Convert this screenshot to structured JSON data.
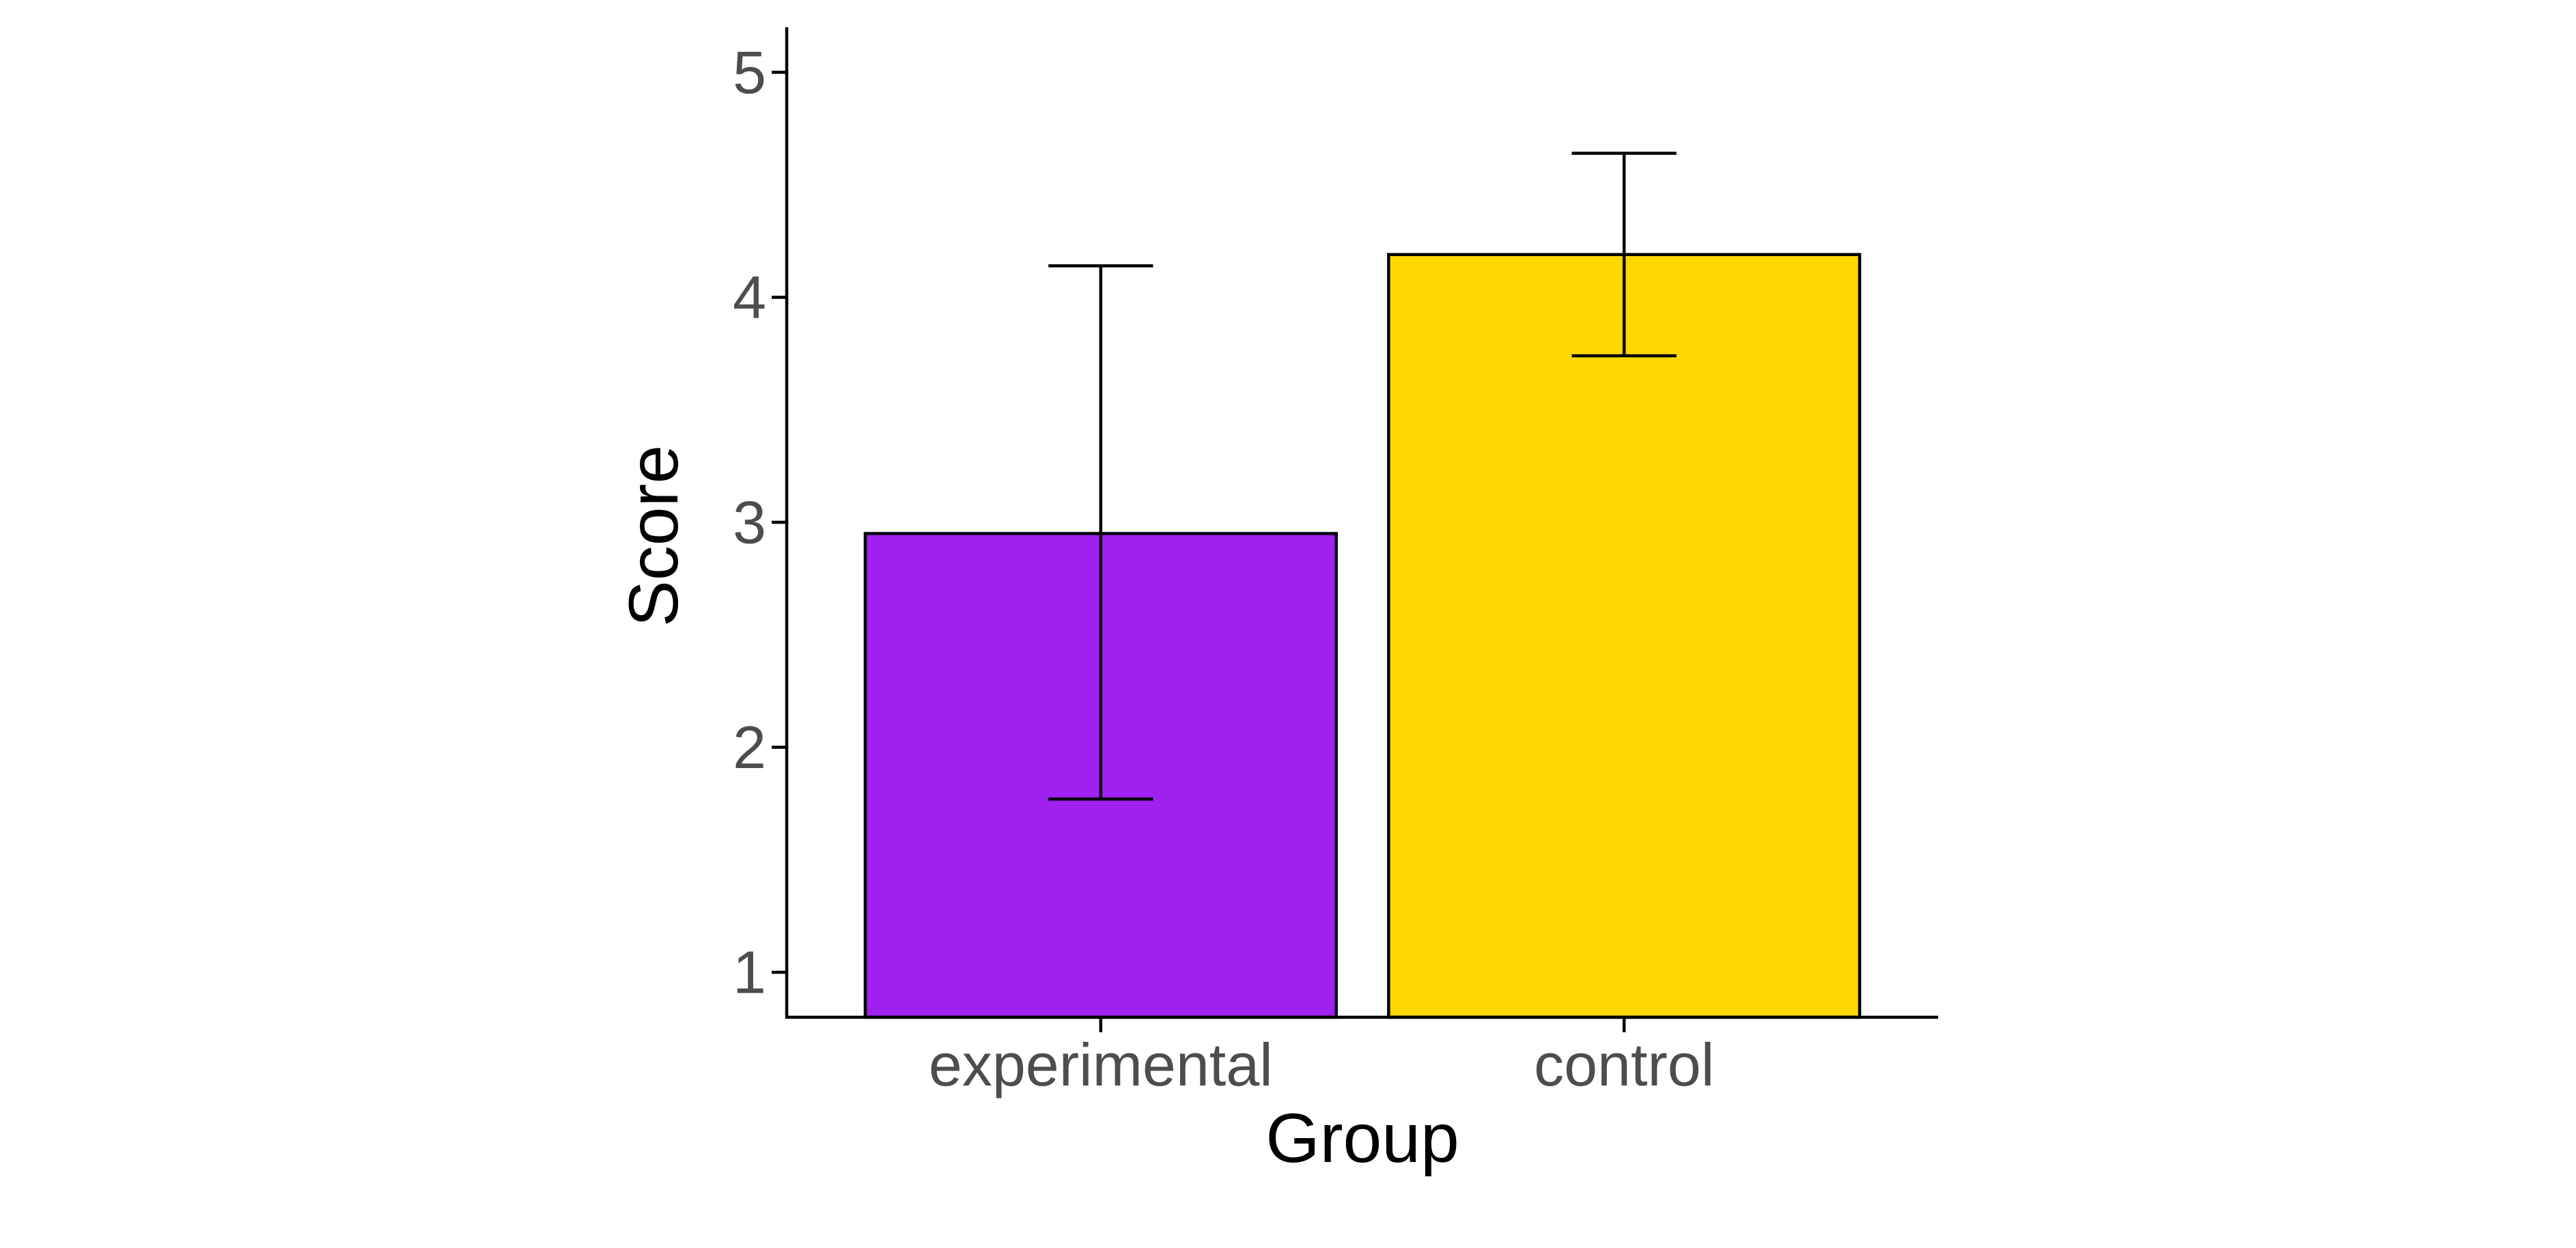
{
  "chart_data": {
    "type": "bar",
    "title": "",
    "xlabel": "Group",
    "ylabel": "Score",
    "categories": [
      "experimental",
      "control"
    ],
    "values": [
      2.95,
      4.19
    ],
    "error_low": [
      1.77,
      3.74
    ],
    "error_high": [
      4.14,
      4.64
    ],
    "colors": [
      "#A020F0",
      "#FFD700"
    ],
    "ylim": [
      0.8,
      5.2
    ],
    "yticks": [
      1,
      2,
      3,
      4,
      5
    ],
    "grid": false,
    "legend": "none"
  }
}
